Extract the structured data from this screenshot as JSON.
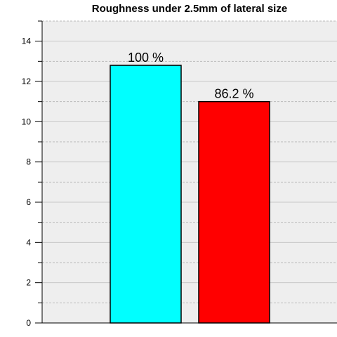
{
  "chart_data": {
    "type": "bar",
    "title": "Roughness under 2.5mm of lateral size",
    "xlabel": "",
    "ylabel": "",
    "ylim": [
      0,
      15
    ],
    "yticks": [
      0,
      2,
      4,
      6,
      8,
      10,
      12,
      14
    ],
    "grid": true,
    "legend": "none",
    "background_color": "#eeeeee",
    "bars": [
      {
        "value": 12.8,
        "label": "100 %",
        "color": "#00ffff"
      },
      {
        "value": 11.0,
        "label": "86.2 %",
        "color": "#ff0000"
      }
    ]
  }
}
